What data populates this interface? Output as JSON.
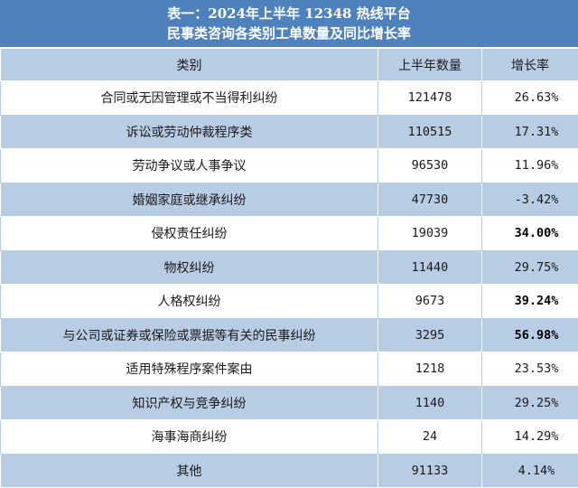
{
  "title": {
    "line1": "表一：2024年上半年 12348 热线平台",
    "line2": "民事类咨询各类别工单数量及同比增长率"
  },
  "headers": {
    "category": "类别",
    "count": "上半年数量",
    "growth": "增长率"
  },
  "rows": [
    {
      "category": "合同或无因管理或不当得利纠纷",
      "count": "121478",
      "growth": "26.63%",
      "bold": false
    },
    {
      "category": "诉讼或劳动仲裁程序类",
      "count": "110515",
      "growth": "17.31%",
      "bold": false
    },
    {
      "category": "劳动争议或人事争议",
      "count": "96530",
      "growth": "11.96%",
      "bold": false
    },
    {
      "category": "婚姻家庭或继承纠纷",
      "count": "47730",
      "growth": "-3.42%",
      "bold": false
    },
    {
      "category": "侵权责任纠纷",
      "count": "19039",
      "growth": "34.00%",
      "bold": true
    },
    {
      "category": "物权纠纷",
      "count": "11440",
      "growth": "29.75%",
      "bold": false
    },
    {
      "category": "人格权纠纷",
      "count": "9673",
      "growth": "39.24%",
      "bold": true
    },
    {
      "category": "与公司或证券或保险或票据等有关的民事纠纷",
      "count": "3295",
      "growth": "56.98%",
      "bold": true
    },
    {
      "category": "适用特殊程序案件案由",
      "count": "1218",
      "growth": "23.53%",
      "bold": false
    },
    {
      "category": "知识产权与竞争纠纷",
      "count": "1140",
      "growth": "29.25%",
      "bold": false
    },
    {
      "category": "海事海商纠纷",
      "count": "24",
      "growth": "14.29%",
      "bold": false
    },
    {
      "category": "其他",
      "count": "91133",
      "growth": "4.14%",
      "bold": false
    }
  ],
  "colors": {
    "title_bg": "#4f81bd",
    "band_bg": "#b8cce4",
    "row_bg": "#ffffff"
  }
}
